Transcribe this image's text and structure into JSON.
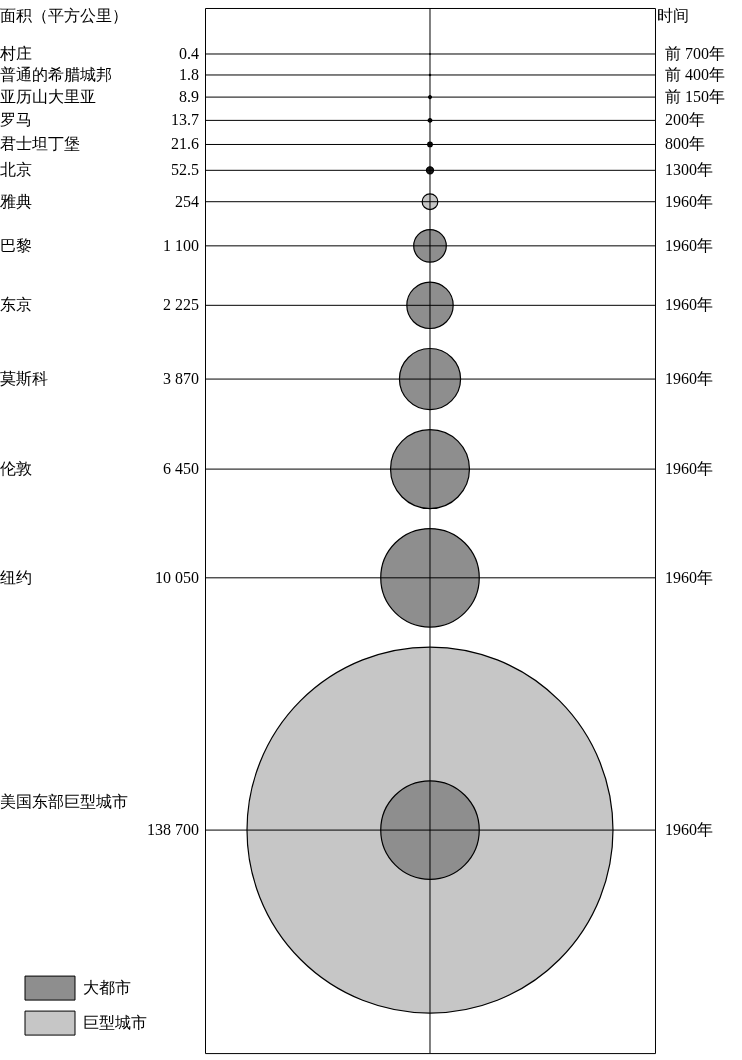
{
  "chart_data": {
    "type": "other",
    "ylabel": "面积（平方公里）",
    "y2label": "时间",
    "categories": [
      "村庄",
      "普通的希腊城邦",
      "亚历山大里亚",
      "罗马",
      "君士坦丁堡",
      "北京",
      "雅典",
      "巴黎",
      "东京",
      "莫斯科",
      "伦敦",
      "纽约",
      "美国东部巨型城市"
    ],
    "y2_categories": [
      "前 700年",
      "前 400年",
      "前 150年",
      "200年",
      "800年",
      "1300年",
      "1960年",
      "1960年",
      "1960年",
      "1960年",
      "1960年",
      "1960年",
      "1960年"
    ],
    "series": [
      {
        "color": "#1a1a1a",
        "values": [
          0.4,
          1.8,
          8.9,
          13.7,
          21.6,
          52.5,
          null,
          null,
          null,
          null,
          null,
          null,
          null
        ],
        "value_labels": [
          "0.4",
          "1.8",
          "8.9",
          "13.7",
          "21.6",
          "52.5",
          null,
          null,
          null,
          null,
          null,
          null,
          null
        ]
      },
      {
        "color": "#c6c6c6",
        "values": [
          null,
          null,
          null,
          null,
          null,
          null,
          254,
          null,
          null,
          null,
          null,
          null,
          null
        ],
        "value_labels": [
          null,
          null,
          null,
          null,
          null,
          null,
          "254",
          null,
          null,
          null,
          null,
          null,
          null
        ]
      },
      {
        "name": "大都市",
        "color": "#8e8e8e",
        "values": [
          null,
          null,
          null,
          null,
          null,
          null,
          null,
          1100,
          2225,
          3870,
          6450,
          10050,
          null
        ],
        "value_labels": [
          null,
          null,
          null,
          null,
          null,
          null,
          null,
          "1 100",
          "2 225",
          "3 870",
          "6 450",
          "10 050",
          null
        ]
      },
      {
        "name": "巨型城市",
        "color": "#c6c6c6",
        "values": [
          null,
          null,
          null,
          null,
          null,
          null,
          null,
          null,
          null,
          null,
          null,
          null,
          138700
        ],
        "value_labels": [
          null,
          null,
          null,
          null,
          null,
          null,
          null,
          null,
          null,
          null,
          null,
          null,
          "138 700"
        ]
      }
    ],
    "legend": "bottom left"
  }
}
